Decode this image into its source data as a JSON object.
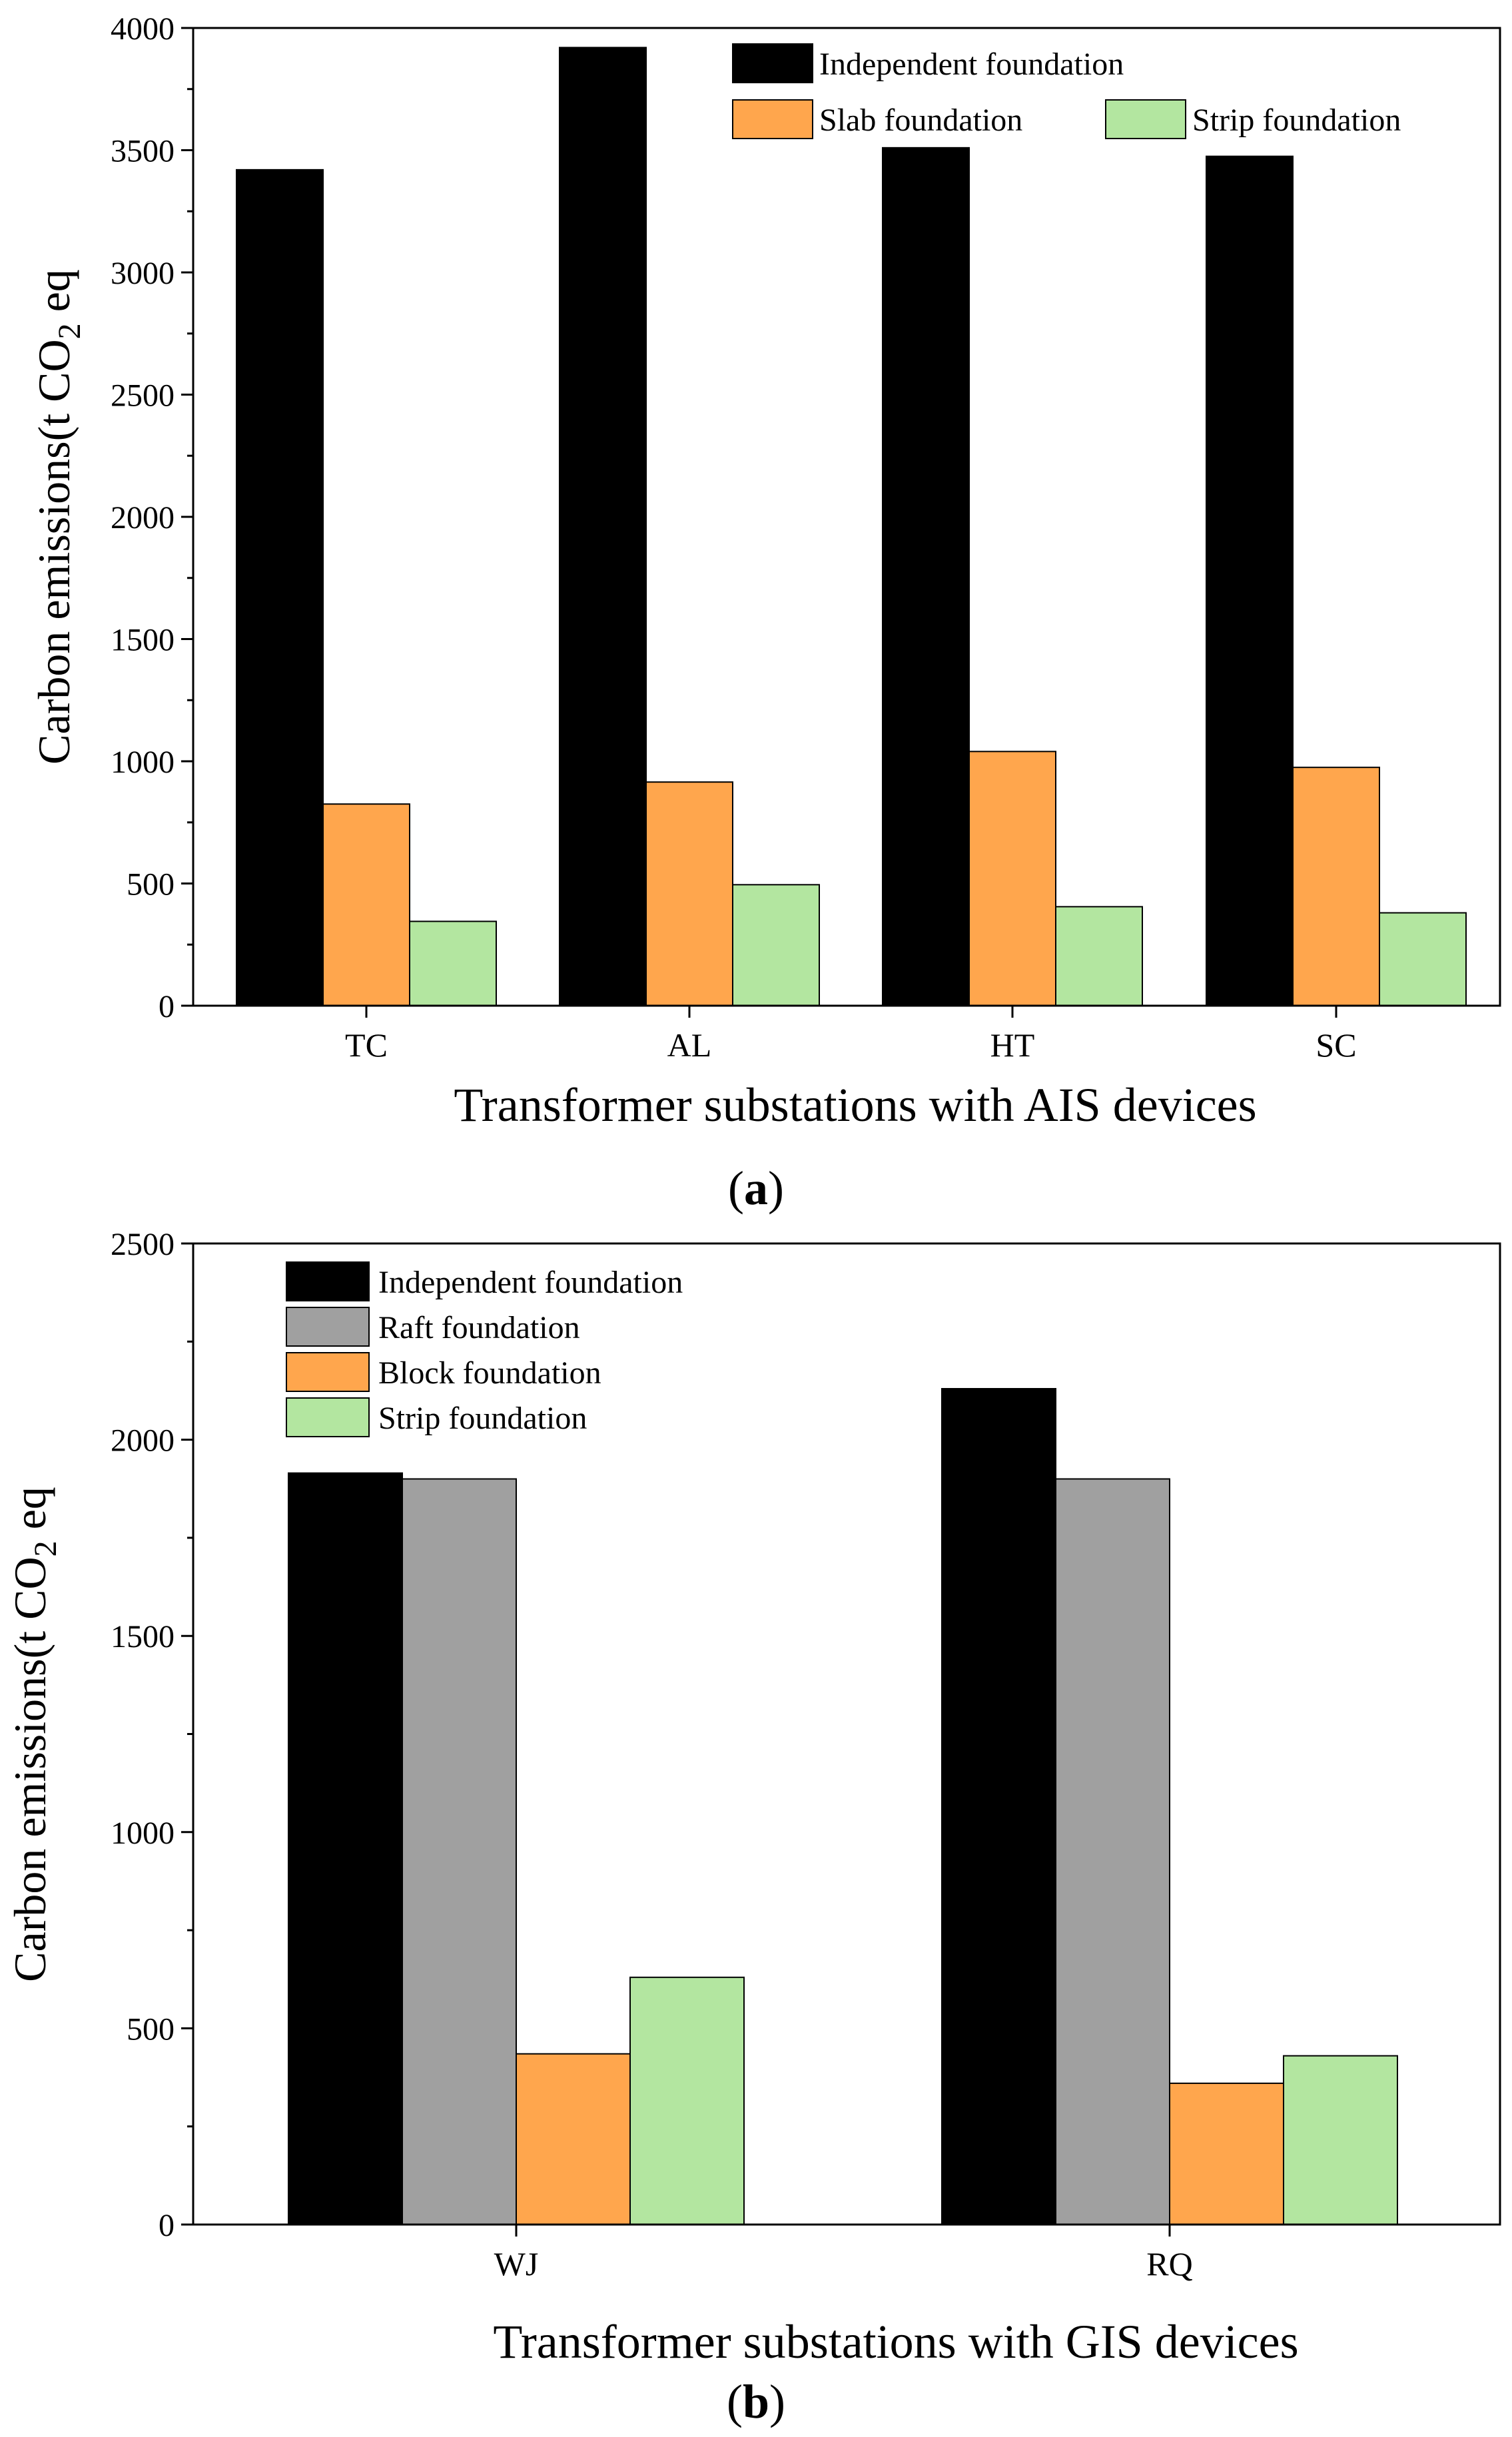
{
  "chart_data": [
    {
      "type": "bar",
      "panel": "a",
      "panel_label": "a",
      "categories": [
        "TC",
        "AL",
        "HT",
        "SC"
      ],
      "series": [
        {
          "name": "Independent foundation",
          "color": "#000000",
          "values": [
            3420,
            3920,
            3510,
            3475
          ]
        },
        {
          "name": "Slab foundation",
          "color": "#FFA64D",
          "values": [
            825,
            915,
            1040,
            975
          ]
        },
        {
          "name": "Strip foundation",
          "color": "#B3E6A0",
          "values": [
            345,
            495,
            405,
            380
          ]
        }
      ],
      "title": "",
      "xlabel": "Transformer substations with AIS devices",
      "ylabel": {
        "text": "Carbon emissions(t CO",
        "sub": "2",
        "tail": " eq"
      },
      "ylim": [
        0,
        4000
      ],
      "yticks": [
        0,
        500,
        1000,
        1500,
        2000,
        2500,
        3000,
        3500,
        4000
      ],
      "ytick_labels": [
        "0",
        "500",
        "1000",
        "1500",
        "2000",
        "2500",
        "3000",
        "3500",
        "4000"
      ],
      "grid": false,
      "legend_position": "top-right"
    },
    {
      "type": "bar",
      "panel": "b",
      "panel_label": "b",
      "categories": [
        "WJ",
        "RQ"
      ],
      "series": [
        {
          "name": "Independent foundation",
          "color": "#000000",
          "values": [
            1915,
            2130
          ]
        },
        {
          "name": "Raft foundation",
          "color": "#A0A0A0",
          "values": [
            1900,
            1900
          ]
        },
        {
          "name": "Block foundation",
          "color": "#FFA64D",
          "values": [
            435,
            360
          ]
        },
        {
          "name": "Strip foundation",
          "color": "#B3E6A0",
          "values": [
            630,
            430
          ]
        }
      ],
      "title": "",
      "xlabel": "Transformer substations with GIS devices",
      "ylabel": {
        "text": "Carbon emissions(t CO",
        "sub": "2",
        "tail": " eq"
      },
      "ylim": [
        0,
        2500
      ],
      "yticks": [
        0,
        500,
        1000,
        1500,
        2000,
        2500
      ],
      "ytick_labels": [
        "0",
        "500",
        "1000",
        "1500",
        "2000",
        "2500"
      ],
      "grid": false,
      "legend_position": "top-left"
    }
  ]
}
